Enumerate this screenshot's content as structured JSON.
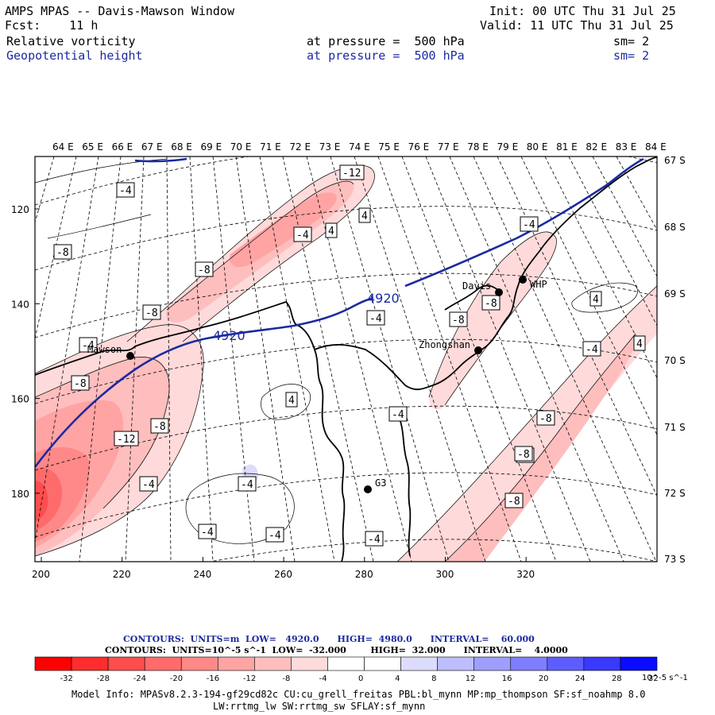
{
  "header": {
    "title": "AMPS MPAS -- Davis-Mawson Window",
    "fcst": "Fcst:    11 h",
    "init": "Init: 00 UTC Thu 31 Jul 25",
    "valid": "Valid: 11 UTC Thu 31 Jul 25",
    "fields": [
      {
        "name": "Relative vorticity",
        "level": "at pressure =  500 hPa",
        "sm": "sm= 2"
      },
      {
        "name": "Geopotential height",
        "level": "at pressure =  500 hPa",
        "sm": "sm= 2"
      }
    ]
  },
  "map": {
    "lon_labels": [
      "64 E",
      "65 E",
      "66 E",
      "67 E",
      "68 E",
      "69 E",
      "70 E",
      "71 E",
      "72 E",
      "73 E",
      "74 E",
      "75 E",
      "76 E",
      "77 E",
      "78 E",
      "79 E",
      "80 E",
      "81 E",
      "82 E",
      "83 E",
      "84 E"
    ],
    "lat_labels": [
      "67 S",
      "68 S",
      "69 S",
      "70 S",
      "71 S",
      "72 S",
      "73 S"
    ],
    "x_ticks": [
      "200",
      "220",
      "240",
      "260",
      "280",
      "300",
      "320"
    ],
    "y_ticks": [
      "120",
      "140",
      "160",
      "180"
    ],
    "stations": [
      {
        "name": "Mawson"
      },
      {
        "name": "Davis"
      },
      {
        "name": "WHP"
      },
      {
        "name": "Zhongshan"
      },
      {
        "name": "G3"
      }
    ],
    "height_labels": [
      "4920",
      "4920"
    ],
    "vort_labels": [
      "-12",
      "-4",
      "4",
      "-8",
      "-4",
      "4",
      "-8",
      "-8",
      "-4",
      "-4",
      "-8",
      "-8",
      "-8",
      "-4",
      "4",
      "-4",
      "-4",
      "-8",
      "-12",
      "-8",
      "4",
      "4",
      "-4",
      "-4",
      "-8",
      "-4",
      "-4",
      "-4",
      "-4",
      "-8"
    ]
  },
  "footer": {
    "contours1": "CONTOURS:  UNITS=m  LOW=   4920.0      HIGH=  4980.0      INTERVAL=    60.000",
    "contours2": "CONTOURS:  UNITS=10^-5 s^-1  LOW=  -32.000        HIGH=  32.000      INTERVAL=    4.0000",
    "colorbar_labels": [
      "-32",
      "-28",
      "-24",
      "-20",
      "-16",
      "-12",
      "-8",
      "-4",
      "0",
      "4",
      "8",
      "12",
      "16",
      "20",
      "24",
      "28",
      "32"
    ],
    "colorbar_unit": "10^-5 s^-1",
    "colors": [
      "#ff0000",
      "#ff2d2d",
      "#ff4d4d",
      "#ff6b6b",
      "#ff8888",
      "#ffa3a3",
      "#ffbebe",
      "#ffdada",
      "#ffffff",
      "#ffffff",
      "#dcdcff",
      "#bdbdff",
      "#9e9eff",
      "#7e7eff",
      "#5d5dff",
      "#3a3aff",
      "#0b0bff"
    ],
    "model_info": "Model Info: MPASv8.2.3-194-gf29cd82c CU:cu_grell_freitas PBL:bl_mynn MP:mp_thompson SF:sf_noahmp 8.0",
    "model_info2": "LW:rrtmg_lw SW:rrtmg_sw SFLAY:sf_mynn"
  }
}
